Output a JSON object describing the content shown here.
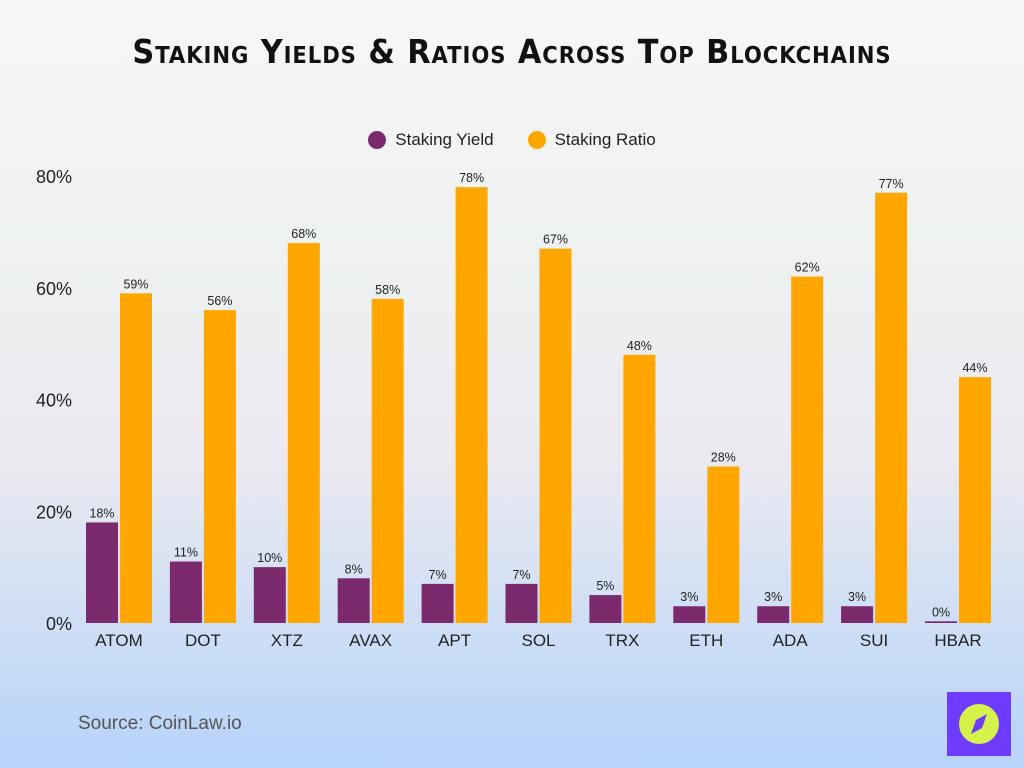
{
  "chart_data": {
    "type": "bar",
    "title": "Staking Yields & Ratios Across Top Blockchains",
    "categories": [
      "ATOM",
      "DOT",
      "XTZ",
      "AVAX",
      "APT",
      "SOL",
      "TRX",
      "ETH",
      "ADA",
      "SUI",
      "HBAR"
    ],
    "series": [
      {
        "name": "Staking Yield",
        "color": "#7b2a6e",
        "values": [
          18,
          11,
          10,
          8,
          7,
          7,
          5,
          3,
          3,
          3,
          0
        ]
      },
      {
        "name": "Staking Ratio",
        "color": "#ffa600",
        "values": [
          59,
          56,
          68,
          58,
          78,
          67,
          48,
          28,
          62,
          77,
          44
        ]
      }
    ],
    "yticks": [
      "0%",
      "20%",
      "40%",
      "60%",
      "80%"
    ],
    "ylim": [
      0,
      80
    ],
    "grid": false,
    "legend": "top-center",
    "value_suffix": "%"
  },
  "source": "Source: CoinLaw.io",
  "logo": {
    "icon": "compass-icon",
    "bg": "#6f3cff",
    "fg": "#d4f24a"
  }
}
